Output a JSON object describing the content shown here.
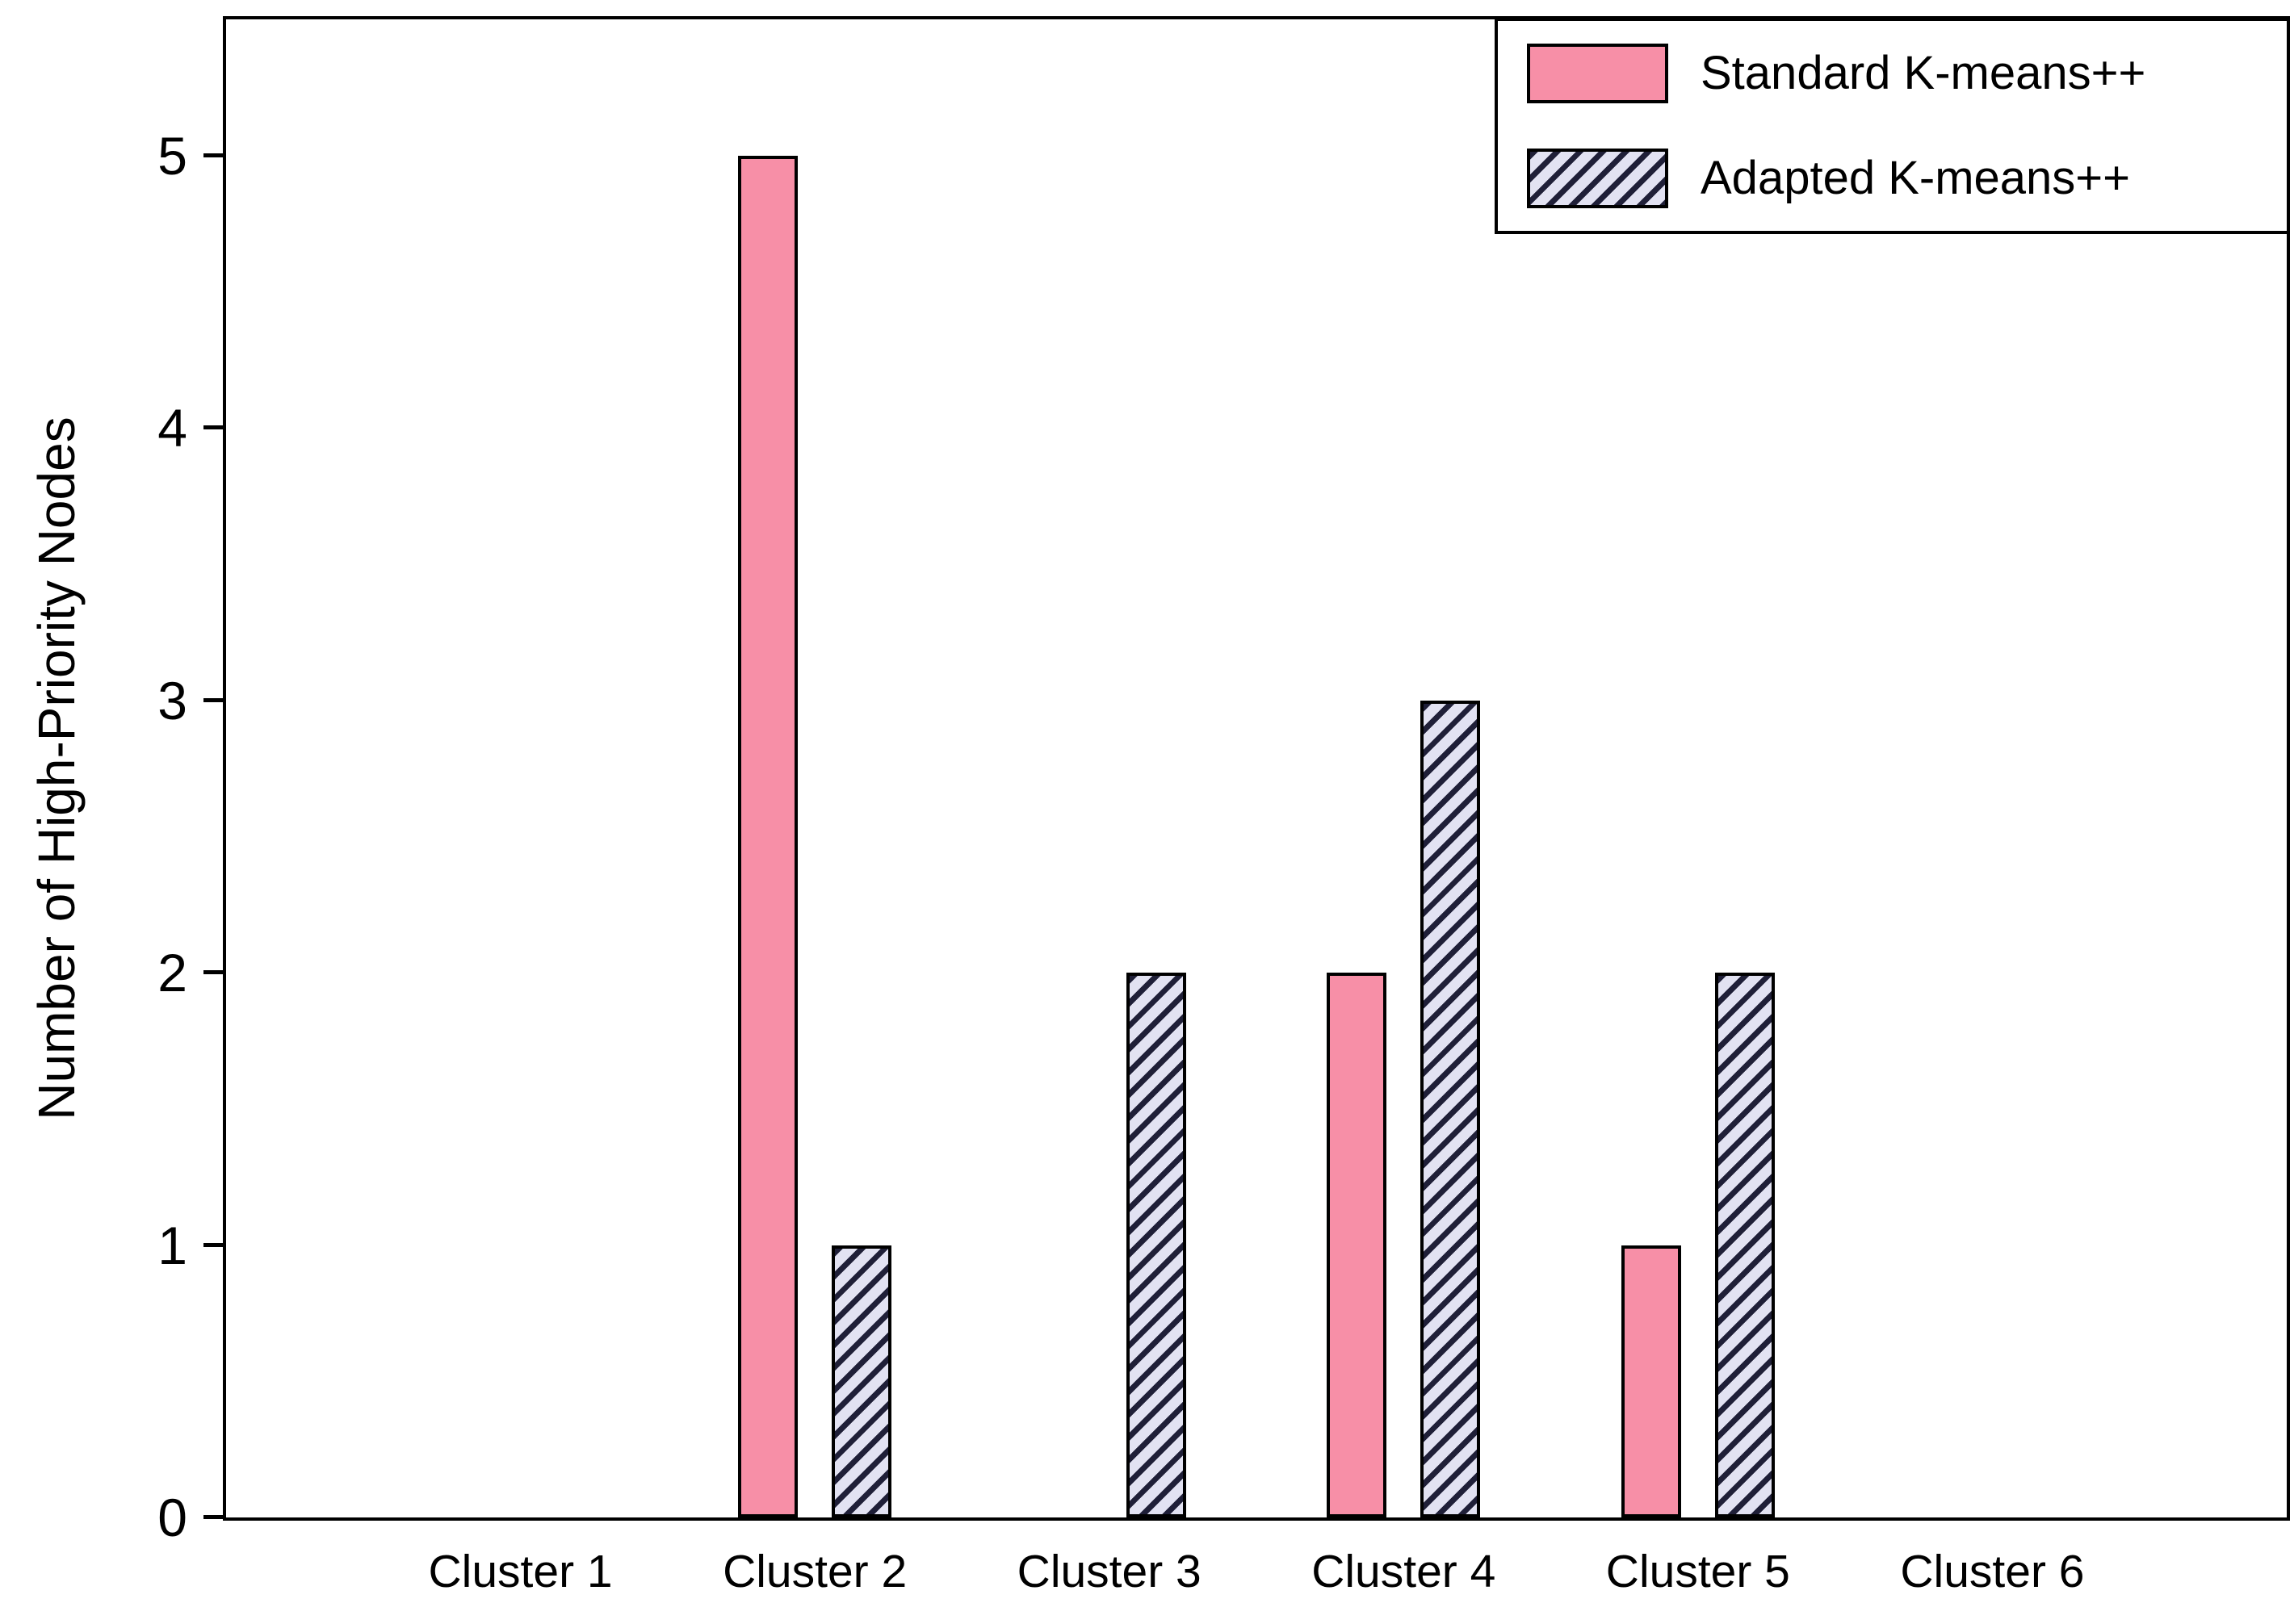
{
  "chart_data": {
    "type": "bar",
    "title": "",
    "xlabel": "",
    "ylabel": "Number of High-Priority Nodes",
    "categories": [
      "Cluster 1",
      "Cluster 2",
      "Cluster 3",
      "Cluster 4",
      "Cluster 5",
      "Cluster 6"
    ],
    "series": [
      {
        "name": "Standard K-means++",
        "values": [
          0,
          5,
          0,
          2,
          1,
          0
        ],
        "style": "solid",
        "color": "#f78fa7"
      },
      {
        "name": "Adapted K-means++",
        "values": [
          0,
          1,
          2,
          3,
          2,
          0
        ],
        "style": "hatched",
        "color": "#e2e2f2",
        "hatch_color": "#1f1f38"
      }
    ],
    "ylim": [
      0,
      5.5
    ],
    "yticks": [
      0,
      1,
      2,
      3,
      4,
      5
    ],
    "grid": false,
    "legend_position": "top-right",
    "axis_color": "#000000"
  }
}
